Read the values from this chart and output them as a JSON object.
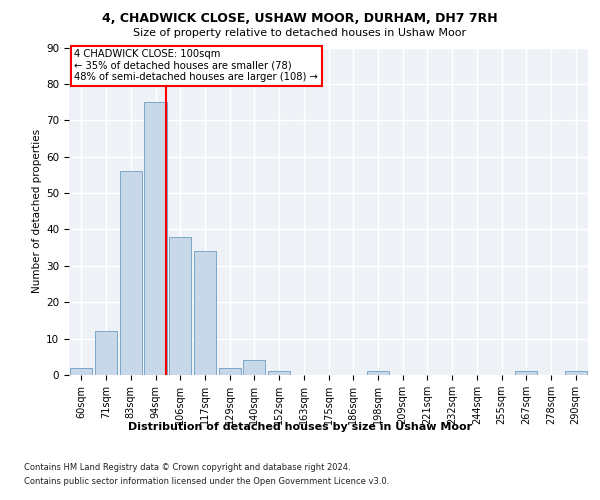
{
  "title1": "4, CHADWICK CLOSE, USHAW MOOR, DURHAM, DH7 7RH",
  "title2": "Size of property relative to detached houses in Ushaw Moor",
  "xlabel": "Distribution of detached houses by size in Ushaw Moor",
  "ylabel": "Number of detached properties",
  "footnote1": "Contains HM Land Registry data © Crown copyright and database right 2024.",
  "footnote2": "Contains public sector information licensed under the Open Government Licence v3.0.",
  "bin_labels": [
    "60sqm",
    "71sqm",
    "83sqm",
    "94sqm",
    "106sqm",
    "117sqm",
    "129sqm",
    "140sqm",
    "152sqm",
    "163sqm",
    "175sqm",
    "186sqm",
    "198sqm",
    "209sqm",
    "221sqm",
    "232sqm",
    "244sqm",
    "255sqm",
    "267sqm",
    "278sqm",
    "290sqm"
  ],
  "bar_heights": [
    2,
    12,
    56,
    75,
    38,
    34,
    2,
    4,
    1,
    0,
    0,
    0,
    1,
    0,
    0,
    0,
    0,
    0,
    1,
    0,
    1
  ],
  "bar_color": "#c8d8e8",
  "bar_edge_color": "#7aa8c8",
  "property_line_label": "4 CHADWICK CLOSE: 100sqm",
  "annotation_line1": "← 35% of detached houses are smaller (78)",
  "annotation_line2": "48% of semi-detached houses are larger (108) →",
  "ylim": [
    0,
    90
  ],
  "yticks": [
    0,
    10,
    20,
    30,
    40,
    50,
    60,
    70,
    80,
    90
  ],
  "bg_color": "#eef2f7",
  "grid_color": "white",
  "property_line_color": "red",
  "line_x_index": 3.42
}
